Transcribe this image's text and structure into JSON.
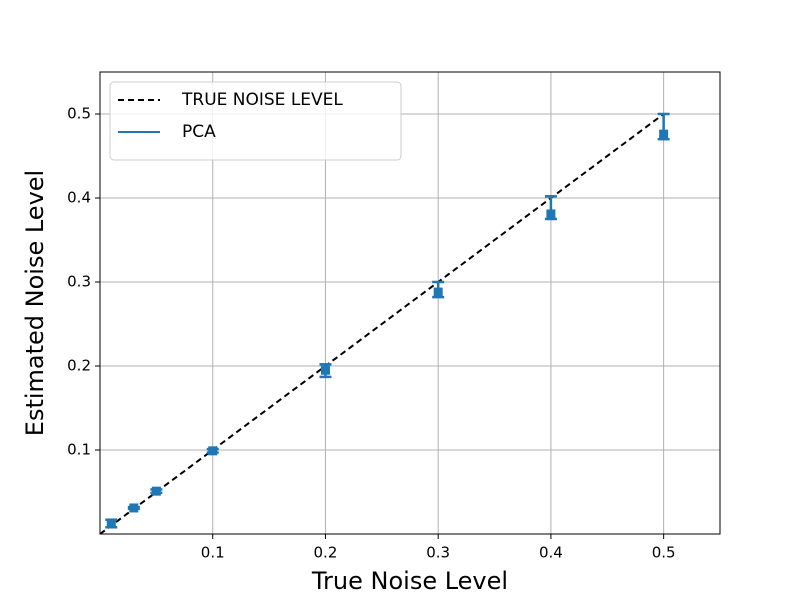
{
  "chart_data": {
    "type": "errorbar",
    "xlabel": "True Noise Level",
    "ylabel": "Estimated Noise Level",
    "xlim": [
      0,
      0.55
    ],
    "ylim": [
      0,
      0.55
    ],
    "xticks": [
      0.1,
      0.2,
      0.3,
      0.4,
      0.5
    ],
    "yticks": [
      0.1,
      0.2,
      0.3,
      0.4,
      0.5
    ],
    "grid": true,
    "legend": "upper-left",
    "series": [
      {
        "name": "TRUE NOISE LEVEL",
        "color": "#000000",
        "style": "dashed",
        "x": [
          0,
          0.5
        ],
        "values": [
          0,
          0.5
        ]
      },
      {
        "name": "PCA",
        "color": "#1f77b4",
        "style": "errorbar",
        "x": [
          0.01,
          0.03,
          0.05,
          0.1,
          0.2,
          0.3,
          0.4,
          0.5
        ],
        "values": [
          0.012,
          0.031,
          0.051,
          0.099,
          0.195,
          0.288,
          0.381,
          0.476
        ],
        "err_minus": [
          0.004,
          0.001,
          0.002,
          0.002,
          0.008,
          0.006,
          0.006,
          0.006
        ],
        "err_plus": [
          0.005,
          0.001,
          0.002,
          0.002,
          0.007,
          0.012,
          0.021,
          0.024
        ]
      }
    ]
  }
}
